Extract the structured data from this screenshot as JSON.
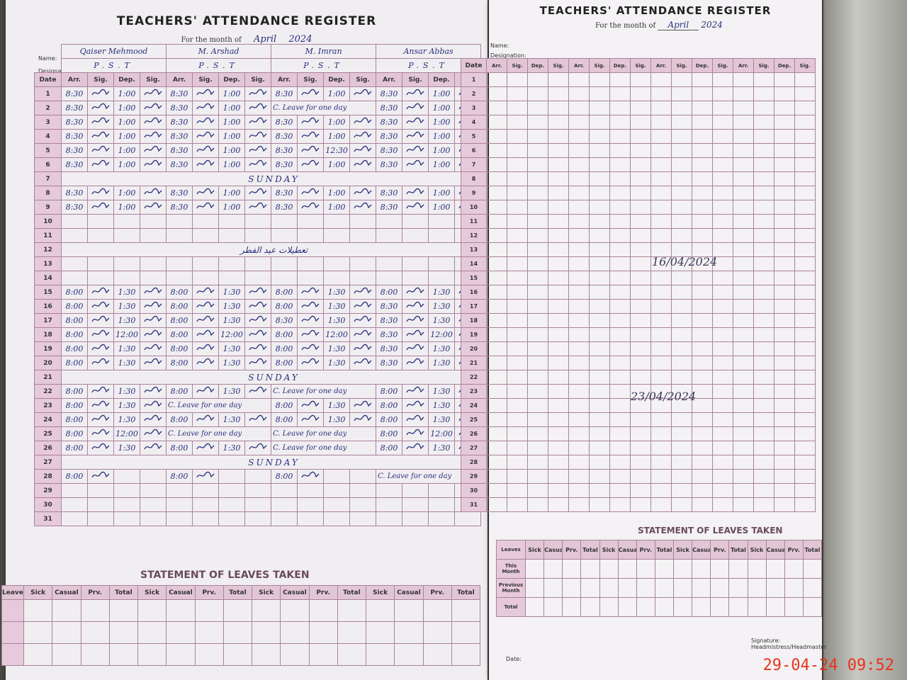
{
  "left_page": {
    "title": "TEACHERS' ATTENDANCE REGISTER",
    "month_label": "For the month of",
    "month": "April",
    "year": "2024",
    "name_label": "Name:",
    "designation_label": "Designation:",
    "date_label": "Date",
    "column_labels": [
      "Arr.",
      "Sig.",
      "Dep.",
      "Sig."
    ],
    "teachers": [
      {
        "name": "Qaiser Mehmood",
        "designation": "P.S.T"
      },
      {
        "name": "M. Arshad",
        "designation": "P.S.T"
      },
      {
        "name": "M. Imran",
        "designation": "P.S.T"
      },
      {
        "name": "Ansar Abbas",
        "designation": "P.S.T"
      }
    ],
    "rows": [
      {
        "date": "1",
        "entries": [
          {
            "arr": "8:30",
            "dep": "1:00"
          },
          {
            "arr": "8:30",
            "dep": "1:00"
          },
          {
            "arr": "8:30",
            "dep": "1:00"
          },
          {
            "arr": "8:30",
            "dep": "1:00"
          }
        ]
      },
      {
        "date": "2",
        "entries": [
          {
            "arr": "8:30",
            "dep": "1:00"
          },
          {
            "arr": "8:30",
            "dep": "1:00"
          },
          {
            "note": "C. Leave for one day"
          },
          {
            "arr": "8:30",
            "dep": "1:00"
          }
        ]
      },
      {
        "date": "3",
        "entries": [
          {
            "arr": "8:30",
            "dep": "1:00"
          },
          {
            "arr": "8:30",
            "dep": "1:00"
          },
          {
            "arr": "8:30",
            "dep": "1:00"
          },
          {
            "arr": "8:30",
            "dep": "1:00"
          }
        ]
      },
      {
        "date": "4",
        "entries": [
          {
            "arr": "8:30",
            "dep": "1:00"
          },
          {
            "arr": "8:30",
            "dep": "1:00"
          },
          {
            "arr": "8:30",
            "dep": "1:00"
          },
          {
            "arr": "8:30",
            "dep": "1:00"
          }
        ]
      },
      {
        "date": "5",
        "entries": [
          {
            "arr": "8:30",
            "dep": "1:00"
          },
          {
            "arr": "8:30",
            "dep": "1:00"
          },
          {
            "arr": "8:30",
            "dep": "12:30"
          },
          {
            "arr": "8:30",
            "dep": "1:00"
          }
        ]
      },
      {
        "date": "6",
        "entries": [
          {
            "arr": "8:30",
            "dep": "1:00"
          },
          {
            "arr": "8:30",
            "dep": "1:00"
          },
          {
            "arr": "8:30",
            "dep": "1:00"
          },
          {
            "arr": "8:30",
            "dep": "1:00"
          }
        ]
      },
      {
        "date": "7",
        "note": "SUNDAY"
      },
      {
        "date": "8",
        "entries": [
          {
            "arr": "8:30",
            "dep": "1:00"
          },
          {
            "arr": "8:30",
            "dep": "1:00"
          },
          {
            "arr": "8:30",
            "dep": "1:00"
          },
          {
            "arr": "8:30",
            "dep": "1:00"
          }
        ]
      },
      {
        "date": "9",
        "entries": [
          {
            "arr": "8:30",
            "dep": "1:00"
          },
          {
            "arr": "8:30",
            "dep": "1:00"
          },
          {
            "arr": "8:30",
            "dep": "1:00"
          },
          {
            "arr": "8:30",
            "dep": "1:00"
          }
        ]
      },
      {
        "date": "10"
      },
      {
        "date": "11"
      },
      {
        "date": "12",
        "note": "تعطیلات عید الفطر"
      },
      {
        "date": "13"
      },
      {
        "date": "14"
      },
      {
        "date": "15",
        "entries": [
          {
            "arr": "8:00",
            "dep": "1:30"
          },
          {
            "arr": "8:00",
            "dep": "1:30"
          },
          {
            "arr": "8:00",
            "dep": "1:30"
          },
          {
            "arr": "8:00",
            "dep": "1:30"
          }
        ]
      },
      {
        "date": "16",
        "entries": [
          {
            "arr": "8:00",
            "dep": "1:30"
          },
          {
            "arr": "8:00",
            "dep": "1:30"
          },
          {
            "arr": "8:00",
            "dep": "1:30"
          },
          {
            "arr": "8:30",
            "dep": "1:30"
          }
        ]
      },
      {
        "date": "17",
        "entries": [
          {
            "arr": "8:00",
            "dep": "1:30"
          },
          {
            "arr": "8:00",
            "dep": "1:30"
          },
          {
            "arr": "8:30",
            "dep": "1:30"
          },
          {
            "arr": "8:30",
            "dep": "1:30"
          }
        ]
      },
      {
        "date": "18",
        "entries": [
          {
            "arr": "8:00",
            "dep": "12:00"
          },
          {
            "arr": "8:00",
            "dep": "12:00"
          },
          {
            "arr": "8:00",
            "dep": "12:00"
          },
          {
            "arr": "8:30",
            "dep": "12:00"
          }
        ]
      },
      {
        "date": "19",
        "entries": [
          {
            "arr": "8:00",
            "dep": "1:30"
          },
          {
            "arr": "8:00",
            "dep": "1:30"
          },
          {
            "arr": "8:00",
            "dep": "1:30"
          },
          {
            "arr": "8:30",
            "dep": "1:30"
          }
        ]
      },
      {
        "date": "20",
        "entries": [
          {
            "arr": "8:00",
            "dep": "1:30"
          },
          {
            "arr": "8:00",
            "dep": "1:30"
          },
          {
            "arr": "8:00",
            "dep": "1:30"
          },
          {
            "arr": "8:30",
            "dep": "1:30"
          }
        ]
      },
      {
        "date": "21",
        "note": "SUNDAY"
      },
      {
        "date": "22",
        "entries": [
          {
            "arr": "8:00",
            "dep": "1:30"
          },
          {
            "arr": "8:00",
            "dep": "1:30"
          },
          {
            "note": "C. Leave for one day"
          },
          {
            "arr": "8:00",
            "dep": "1:30"
          }
        ]
      },
      {
        "date": "23",
        "entries": [
          {
            "arr": "8:00",
            "dep": "1:30"
          },
          {
            "note": "C. Leave for one day"
          },
          {
            "arr": "8:00",
            "dep": "1:30"
          },
          {
            "arr": "8:00",
            "dep": "1:30"
          }
        ]
      },
      {
        "date": "24",
        "entries": [
          {
            "arr": "8:00",
            "dep": "1:30"
          },
          {
            "arr": "8:00",
            "dep": "1:30"
          },
          {
            "arr": "8:00",
            "dep": "1:30"
          },
          {
            "arr": "8:00",
            "dep": "1:30"
          }
        ]
      },
      {
        "date": "25",
        "entries": [
          {
            "arr": "8:00",
            "dep": "12:00"
          },
          {
            "note": "C. Leave for one day"
          },
          {
            "note": "C. Leave for one day"
          },
          {
            "arr": "8:00",
            "dep": "12:00"
          }
        ]
      },
      {
        "date": "26",
        "entries": [
          {
            "arr": "8:00",
            "dep": "1:30"
          },
          {
            "arr": "8:00",
            "dep": "1:30"
          },
          {
            "note": "C. Leave for one day"
          },
          {
            "arr": "8:00",
            "dep": "1:30"
          }
        ]
      },
      {
        "date": "27",
        "note": "SUNDAY"
      },
      {
        "date": "28",
        "entries": [
          {
            "arr": "8:00"
          },
          {
            "arr": "8:00"
          },
          {
            "arr": "8:00"
          },
          {
            "note": "C. Leave for one day"
          }
        ]
      },
      {
        "date": "29"
      },
      {
        "date": "30"
      },
      {
        "date": "31"
      }
    ],
    "leaves": {
      "title": "STATEMENT OF LEAVES TAKEN",
      "row_label": "Leaves",
      "columns": [
        "Sick",
        "Casual",
        "Prv.",
        "Total"
      ]
    }
  },
  "right_page": {
    "title": "TEACHERS' ATTENDANCE REGISTER",
    "month_label": "For the month of",
    "month": "April",
    "year": "2024",
    "name_label": "Name:",
    "designation_label": "Designation:",
    "date_label": "Date",
    "column_labels": [
      "Arr.",
      "Sig.",
      "Dep.",
      "Sig."
    ],
    "dates": [
      "1",
      "2",
      "3",
      "4",
      "5",
      "6",
      "7",
      "8",
      "9",
      "10",
      "11",
      "12",
      "13",
      "14",
      "15",
      "16",
      "17",
      "18",
      "19",
      "20",
      "21",
      "22",
      "23",
      "24",
      "25",
      "26",
      "27",
      "28",
      "29",
      "30",
      "31"
    ],
    "stamps": [
      "16/04/2024",
      "23/04/2024"
    ],
    "leaves": {
      "title": "STATEMENT OF LEAVES TAKEN",
      "row_labels": [
        "Leaves",
        "This Month",
        "Previous Month",
        "Total"
      ],
      "columns": [
        "Sick",
        "Casual",
        "Prv.",
        "Total"
      ]
    },
    "signature_label": "Signature: Headmistress/Headmaster",
    "date_line_label": "Date:"
  },
  "timestamp": "29-04-24  09:52"
}
